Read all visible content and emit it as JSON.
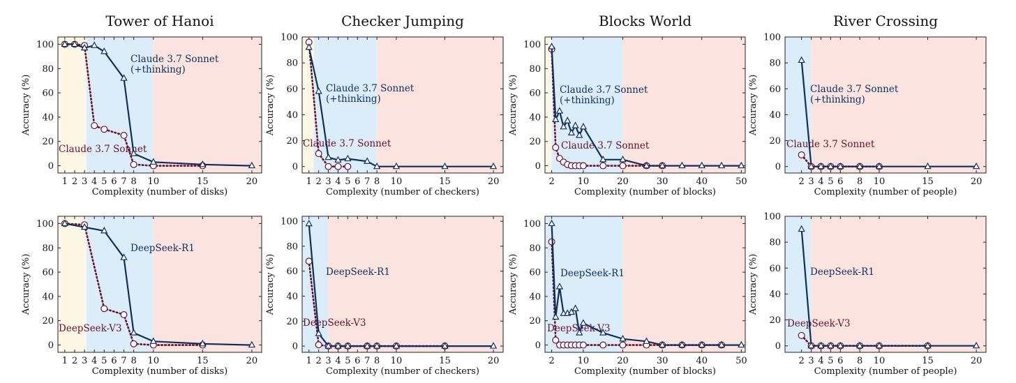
{
  "colors": {
    "thinking": "#0d2f5e",
    "base": "#6b0f2e",
    "zone_easy": "#fdf8e6",
    "zone_medium": "#dcedfa",
    "zone_hard": "#fbe4df"
  },
  "chart_data": [
    {
      "type": "line",
      "title": "Tower of Hanoi",
      "xlabel": "Complexity (number of disks)",
      "ylabel": "Accuracy (%)",
      "xticks": [
        1,
        2,
        3,
        4,
        5,
        6,
        7,
        8,
        10,
        15,
        20
      ],
      "yticks": [
        0,
        20,
        40,
        60,
        80,
        100
      ],
      "xlim": [
        0.3,
        21
      ],
      "ylim": [
        -6,
        106
      ],
      "zones": [
        [
          0.3,
          3.2
        ],
        [
          3.2,
          10
        ],
        [
          10,
          21
        ]
      ],
      "series": [
        {
          "name": "Claude 3.7 Sonnet (+thinking)",
          "label_lines": [
            "Claude 3.7 Sonnet",
            "(+thinking)"
          ],
          "role": "thinking",
          "x": [
            1,
            2,
            3,
            4,
            5,
            7,
            8,
            10,
            15,
            20
          ],
          "y": [
            100,
            100,
            97,
            99,
            94,
            72,
            10,
            3,
            1,
            0
          ]
        },
        {
          "name": "Claude 3.7 Sonnet",
          "label_lines": [
            "Claude 3.7 Sonnet"
          ],
          "role": "base",
          "x": [
            1,
            2,
            3,
            4,
            5,
            7,
            8,
            10,
            15
          ],
          "y": [
            100,
            100,
            99,
            33,
            30,
            25,
            1,
            0,
            0
          ]
        }
      ]
    },
    {
      "type": "line",
      "title": "Checker Jumping",
      "xlabel": "Complexity (number of checkers)",
      "ylabel": "Accuracy (%)",
      "xticks": [
        1,
        2,
        3,
        4,
        5,
        6,
        7,
        8,
        10,
        15,
        20
      ],
      "yticks": [
        0,
        20,
        40,
        60,
        80,
        100
      ],
      "xlim": [
        0.3,
        21
      ],
      "ylim": [
        -5,
        100
      ],
      "zones": [
        [
          0.3,
          1.5
        ],
        [
          1.5,
          8
        ],
        [
          8,
          21
        ]
      ],
      "series": [
        {
          "name": "Claude 3.7 Sonnet (+thinking)",
          "label_lines": [
            "Claude 3.7 Sonnet",
            "(+thinking)"
          ],
          "role": "thinking",
          "x": [
            1,
            2,
            3,
            4,
            5,
            7,
            8,
            10,
            15,
            20
          ],
          "y": [
            92,
            58,
            7,
            5,
            6,
            4,
            0,
            0,
            0,
            0
          ]
        },
        {
          "name": "Claude 3.7 Sonnet",
          "label_lines": [
            "Claude 3.7 Sonnet"
          ],
          "role": "base",
          "x": [
            1,
            2,
            3,
            4,
            5
          ],
          "y": [
            96,
            10,
            0,
            0,
            0
          ]
        }
      ]
    },
    {
      "type": "line",
      "title": "Blocks World",
      "xlabel": "Complexity (number of blocks)",
      "ylabel": "Accuracy (%)",
      "xticks": [
        2,
        10,
        20,
        30,
        40,
        50
      ],
      "yticks": [
        0,
        20,
        40,
        60,
        80,
        100
      ],
      "xlim": [
        0.3,
        51
      ],
      "ylim": [
        -6,
        106
      ],
      "zones": [
        [
          0.3,
          2
        ],
        [
          2,
          20
        ],
        [
          20,
          51
        ]
      ],
      "series": [
        {
          "name": "Claude 3.7 Sonnet (+thinking)",
          "label_lines": [
            "Claude 3.7 Sonnet",
            "(+thinking)"
          ],
          "role": "thinking",
          "x": [
            2,
            3,
            4,
            5,
            6,
            7,
            8,
            9,
            10,
            15,
            20,
            26,
            30,
            35,
            40,
            45,
            50
          ],
          "y": [
            98,
            38,
            45,
            32,
            37,
            27,
            33,
            25,
            32,
            5,
            5,
            0,
            0,
            0,
            0,
            0,
            0
          ]
        },
        {
          "name": "Claude 3.7 Sonnet",
          "label_lines": [
            "Claude 3.7 Sonnet"
          ],
          "role": "base",
          "x": [
            2,
            3,
            4,
            5,
            6,
            7,
            8,
            9,
            10,
            15,
            20,
            26,
            30
          ],
          "y": [
            96,
            15,
            6,
            3,
            1,
            0,
            0,
            0,
            0,
            0,
            0,
            0,
            0
          ]
        }
      ]
    },
    {
      "type": "line",
      "title": "River Crossing",
      "xlabel": "Complexity (number of people)",
      "ylabel": "Accuracy (%)",
      "xticks": [
        2,
        3,
        4,
        5,
        6,
        8,
        10,
        15,
        20
      ],
      "yticks": [
        0,
        20,
        40,
        60,
        80,
        100
      ],
      "xlim": [
        0.3,
        21
      ],
      "ylim": [
        -5,
        100
      ],
      "zones": [
        [
          0.3,
          3
        ],
        [
          3,
          21
        ]
      ],
      "series": [
        {
          "name": "Claude 3.7 Sonnet (+thinking)",
          "label_lines": [
            "Claude 3.7 Sonnet",
            "(+thinking)"
          ],
          "role": "thinking",
          "x": [
            2,
            3,
            4,
            5,
            6,
            8,
            10,
            15,
            20
          ],
          "y": [
            82,
            0,
            0,
            0,
            0,
            0,
            0,
            0,
            0
          ]
        },
        {
          "name": "Claude 3.7 Sonnet",
          "label_lines": [
            "Claude 3.7 Sonnet"
          ],
          "role": "base",
          "x": [
            2,
            3,
            4,
            5,
            6,
            8,
            10
          ],
          "y": [
            9,
            0,
            0,
            0,
            0,
            0,
            0
          ]
        }
      ]
    },
    {
      "type": "line",
      "title": "",
      "xlabel": "Complexity (number of disks)",
      "ylabel": "Accuracy (%)",
      "xticks": [
        1,
        2,
        3,
        4,
        5,
        6,
        7,
        8,
        10,
        15,
        20
      ],
      "yticks": [
        0,
        20,
        40,
        60,
        80,
        100
      ],
      "xlim": [
        0.3,
        21
      ],
      "ylim": [
        -6,
        106
      ],
      "zones": [
        [
          0.3,
          3.2
        ],
        [
          3.2,
          10
        ],
        [
          10,
          21
        ]
      ],
      "series": [
        {
          "name": "DeepSeek-R1",
          "label_lines": [
            "DeepSeek-R1"
          ],
          "role": "thinking",
          "x": [
            1,
            3,
            5,
            7,
            8,
            10,
            15,
            20
          ],
          "y": [
            100,
            97,
            94,
            72,
            10,
            3,
            1,
            0
          ]
        },
        {
          "name": "DeepSeek-V3",
          "label_lines": [
            "DeepSeek-V3"
          ],
          "role": "base",
          "x": [
            1,
            3,
            5,
            7,
            8,
            10,
            15
          ],
          "y": [
            100,
            99,
            30,
            25,
            1,
            0,
            0
          ]
        }
      ]
    },
    {
      "type": "line",
      "title": "",
      "xlabel": "Complexity (number of checkers)",
      "ylabel": "Accuracy (%)",
      "xticks": [
        1,
        2,
        3,
        4,
        5,
        6,
        7,
        8,
        10,
        15,
        20
      ],
      "yticks": [
        0,
        20,
        40,
        60,
        80,
        100
      ],
      "xlim": [
        0.3,
        21
      ],
      "ylim": [
        -5,
        104
      ],
      "zones": [
        [
          0.3,
          3
        ],
        [
          3,
          21
        ]
      ],
      "series": [
        {
          "name": "DeepSeek-R1",
          "label_lines": [
            "DeepSeek-R1"
          ],
          "role": "thinking",
          "x": [
            1,
            2,
            3,
            4,
            5,
            7,
            8,
            10,
            15,
            20
          ],
          "y": [
            98,
            10,
            0,
            0,
            0,
            0,
            0,
            0,
            0,
            0
          ]
        },
        {
          "name": "DeepSeek-V3",
          "label_lines": [
            "DeepSeek-V3"
          ],
          "role": "base",
          "x": [
            1,
            2,
            3,
            4,
            5,
            7,
            8,
            10,
            15
          ],
          "y": [
            68,
            1,
            0,
            0,
            0,
            0,
            0,
            0,
            0
          ]
        }
      ]
    },
    {
      "type": "line",
      "title": "",
      "xlabel": "Complexity (number of blocks)",
      "ylabel": "Accuracy (%)",
      "xticks": [
        2,
        10,
        20,
        30,
        40,
        50
      ],
      "yticks": [
        0,
        20,
        40,
        60,
        80,
        100
      ],
      "xlim": [
        0.3,
        51
      ],
      "ylim": [
        -6,
        106
      ],
      "zones": [
        [
          0.3,
          20
        ],
        [
          20,
          51
        ]
      ],
      "series": [
        {
          "name": "DeepSeek-R1",
          "label_lines": [
            "DeepSeek-R1"
          ],
          "role": "thinking",
          "x": [
            2,
            3,
            4,
            5,
            6,
            7,
            8,
            9,
            10,
            15,
            20,
            26,
            30,
            35,
            40,
            45,
            50
          ],
          "y": [
            100,
            23,
            48,
            26,
            26,
            27,
            30,
            10,
            18,
            10,
            5,
            3,
            0,
            0,
            0,
            0,
            0
          ]
        },
        {
          "name": "DeepSeek-V3",
          "label_lines": [
            "DeepSeek-V3"
          ],
          "role": "base",
          "x": [
            2,
            3,
            4,
            5,
            6,
            7,
            8,
            9,
            10,
            15,
            20,
            26,
            30,
            35,
            40,
            45
          ],
          "y": [
            85,
            4,
            0,
            0,
            0,
            0,
            0,
            0,
            0,
            0,
            0,
            0,
            0,
            0,
            0,
            0
          ]
        }
      ]
    },
    {
      "type": "line",
      "title": "",
      "xlabel": "Complexity (number of people)",
      "ylabel": "Accuracy (%)",
      "xticks": [
        2,
        3,
        4,
        5,
        6,
        8,
        10,
        15,
        20
      ],
      "yticks": [
        0,
        20,
        40,
        60,
        80,
        100
      ],
      "xlim": [
        0.3,
        21
      ],
      "ylim": [
        -5,
        100
      ],
      "zones": [
        [
          0.3,
          3
        ],
        [
          3,
          21
        ]
      ],
      "series": [
        {
          "name": "DeepSeek-R1",
          "label_lines": [
            "DeepSeek-R1"
          ],
          "role": "thinking",
          "x": [
            2,
            3,
            4,
            5,
            6,
            8,
            10,
            15,
            20
          ],
          "y": [
            90,
            0,
            0,
            0,
            0,
            0,
            0,
            0,
            0
          ]
        },
        {
          "name": "DeepSeek-V3",
          "label_lines": [
            "DeepSeek-V3"
          ],
          "role": "base",
          "x": [
            2,
            3,
            4,
            5,
            6,
            8,
            10,
            15
          ],
          "y": [
            8,
            0,
            0,
            0,
            0,
            0,
            0,
            0
          ]
        }
      ]
    }
  ]
}
